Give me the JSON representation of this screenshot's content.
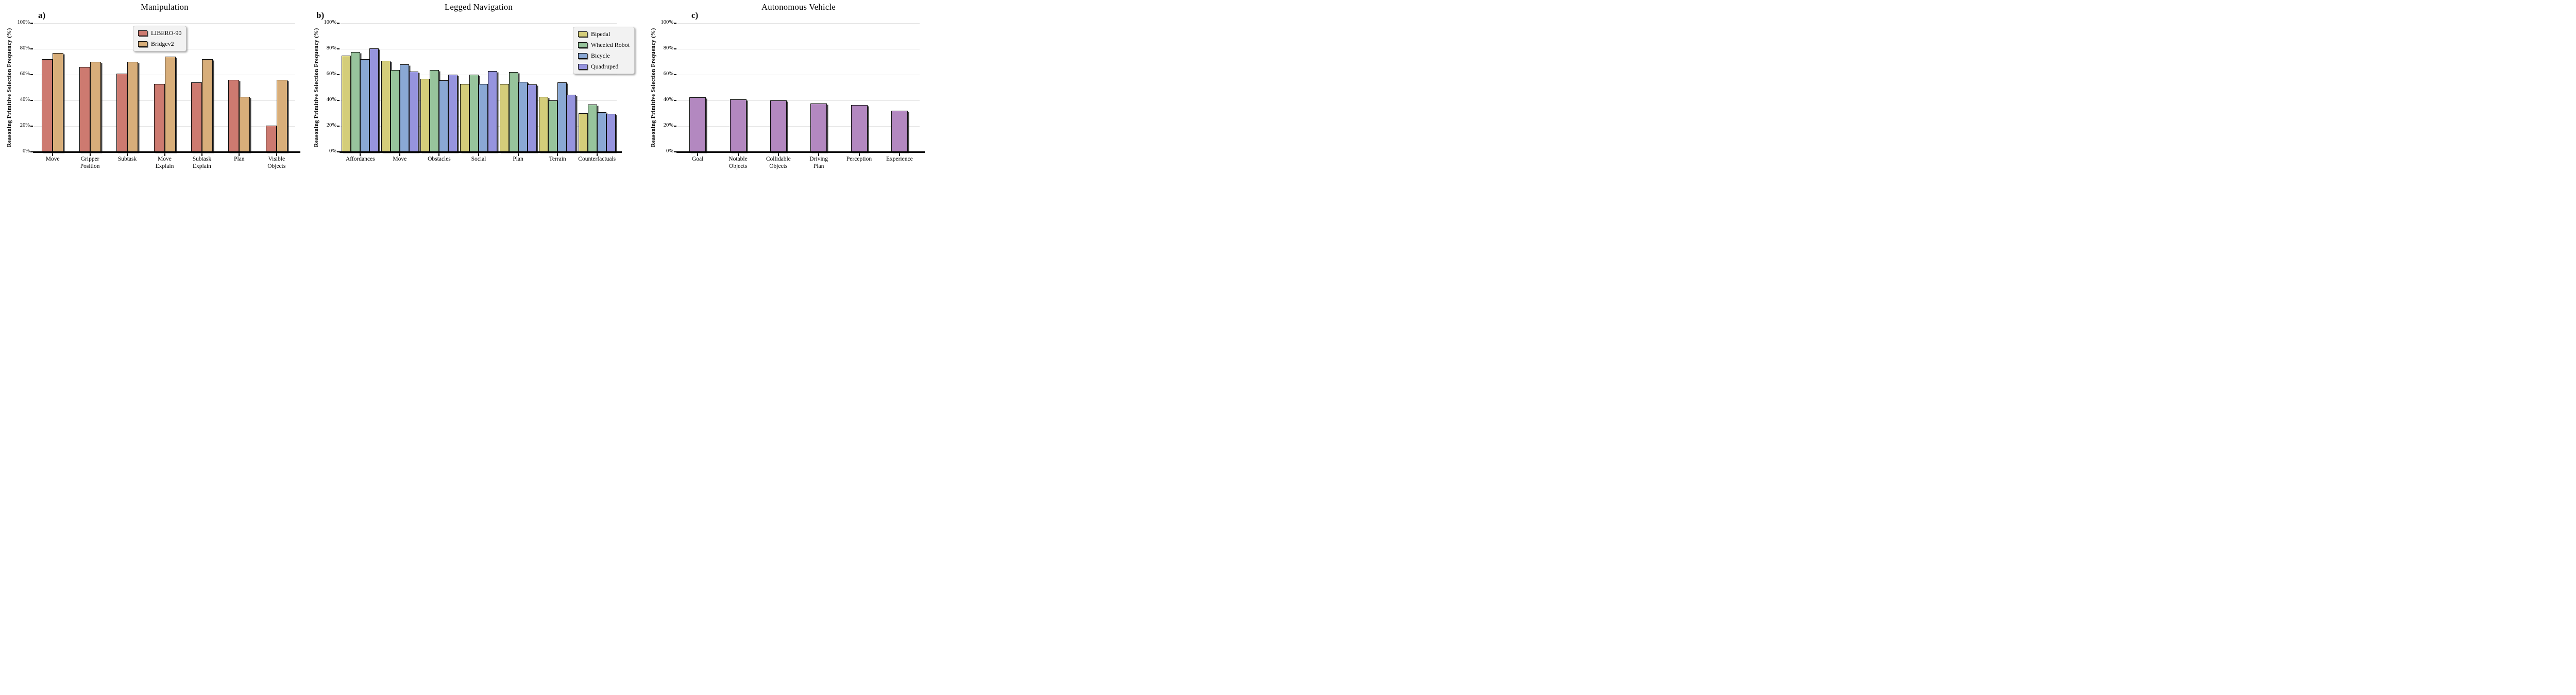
{
  "figure": {
    "background": "#ffffff",
    "grid_color": "#e4e4e4",
    "ylabel": "Reasoning Primitive Selection Frequency (%)",
    "ytick_labels": [
      "0%",
      "20%",
      "40%",
      "60%",
      "80%",
      "100%"
    ]
  },
  "chart_data": [
    {
      "type": "bar",
      "panel_letter": "a)",
      "title": "Manipulation",
      "ylabel": "Reasoning Primitive Selection Frequency (%)",
      "ylim": [
        0,
        100
      ],
      "yticks_pct": [
        0,
        20,
        40,
        60,
        80,
        100
      ],
      "grid": true,
      "legend_position": "upper-right-inside",
      "categories": [
        "Move",
        "Gripper\nPosition",
        "Subtask",
        "Move\nExplain",
        "Subtask\nExplain",
        "Plan",
        "Visible\nObjects"
      ],
      "series": [
        {
          "name": "LIBERO-90",
          "color": "#cd7a70",
          "values": [
            72,
            66,
            61,
            53,
            54,
            56,
            20.5
          ]
        },
        {
          "name": "Bridgev2",
          "color": "#d8ae7a",
          "values": [
            77,
            70,
            70,
            74,
            72,
            43,
            56
          ]
        }
      ]
    },
    {
      "type": "bar",
      "panel_letter": "b)",
      "title": "Legged Navigation",
      "ylabel": "Reasoning Primitive Selection Frequency (%)",
      "ylim": [
        0,
        100
      ],
      "yticks_pct": [
        0,
        20,
        40,
        60,
        80,
        100
      ],
      "grid": true,
      "legend_position": "upper-right-outside",
      "categories": [
        "Affordances",
        "Move",
        "Obstacles",
        "Social",
        "Plan",
        "Terrain",
        "Counterfactuals"
      ],
      "series": [
        {
          "name": "Bipedal",
          "color": "#d4cd7a",
          "values": [
            75,
            71,
            57,
            53,
            53,
            43,
            30
          ]
        },
        {
          "name": "Wheeled Robot",
          "color": "#97c49c",
          "values": [
            77.5,
            63.5,
            63.5,
            60,
            62,
            40,
            37
          ]
        },
        {
          "name": "Bicycle",
          "color": "#8aa8d4",
          "values": [
            72,
            68,
            55.5,
            53,
            54.5,
            54,
            31
          ]
        },
        {
          "name": "Quadruped",
          "color": "#9694de",
          "values": [
            80.5,
            62.5,
            60,
            63,
            52.5,
            44.5,
            29.5
          ]
        }
      ]
    },
    {
      "type": "bar",
      "panel_letter": "c)",
      "title": "Autonomous Vehicle",
      "ylabel": "Reasoning Primitive Selection Frequency (%)",
      "ylim": [
        0,
        100
      ],
      "yticks_pct": [
        0,
        20,
        40,
        60,
        80,
        100
      ],
      "grid": true,
      "legend_position": "none",
      "categories": [
        "Goal",
        "Notable\nObjects",
        "Collidable\nObjects",
        "Driving\nPlan",
        "Perception",
        "Experience"
      ],
      "series": [
        {
          "name": "Autonomous Vehicle",
          "color": "#b388c0",
          "values": [
            42.5,
            41,
            40,
            37.5,
            36.5,
            32
          ]
        }
      ]
    }
  ]
}
